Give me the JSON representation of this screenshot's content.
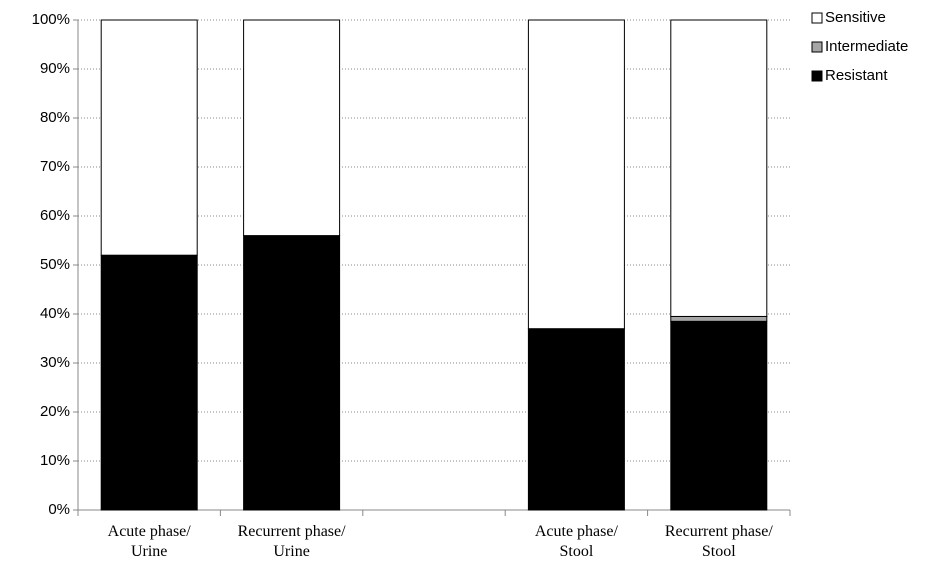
{
  "chart_data": {
    "type": "stacked_bar",
    "categories": [
      "Acute phase/ Urine",
      "Recurrent phase/ Urine",
      null,
      "Acute phase/ Stool",
      "Recurrent phase/ Stool"
    ],
    "series": [
      {
        "name": "Resistant",
        "color": "#000000",
        "values": [
          52,
          56,
          null,
          37,
          38.5
        ]
      },
      {
        "name": "Intermediate",
        "color": "#a6a6a6",
        "values": [
          0,
          0,
          null,
          0,
          1
        ]
      },
      {
        "name": "Sensitive",
        "color": "#ffffff",
        "values": [
          48,
          44,
          null,
          63,
          60.5
        ]
      }
    ],
    "ylim": [
      0,
      100
    ],
    "yticks": [
      {
        "value": 0,
        "label": "0%"
      },
      {
        "value": 10,
        "label": "10%"
      },
      {
        "value": 20,
        "label": "20%"
      },
      {
        "value": 30,
        "label": "30%"
      },
      {
        "value": 40,
        "label": "40%"
      },
      {
        "value": 50,
        "label": "50%"
      },
      {
        "value": 60,
        "label": "60%"
      },
      {
        "value": 70,
        "label": "70%"
      },
      {
        "value": 80,
        "label": "80%"
      },
      {
        "value": 90,
        "label": "90%"
      },
      {
        "value": 100,
        "label": "100%"
      }
    ],
    "grid": true,
    "legend": "top-right"
  }
}
